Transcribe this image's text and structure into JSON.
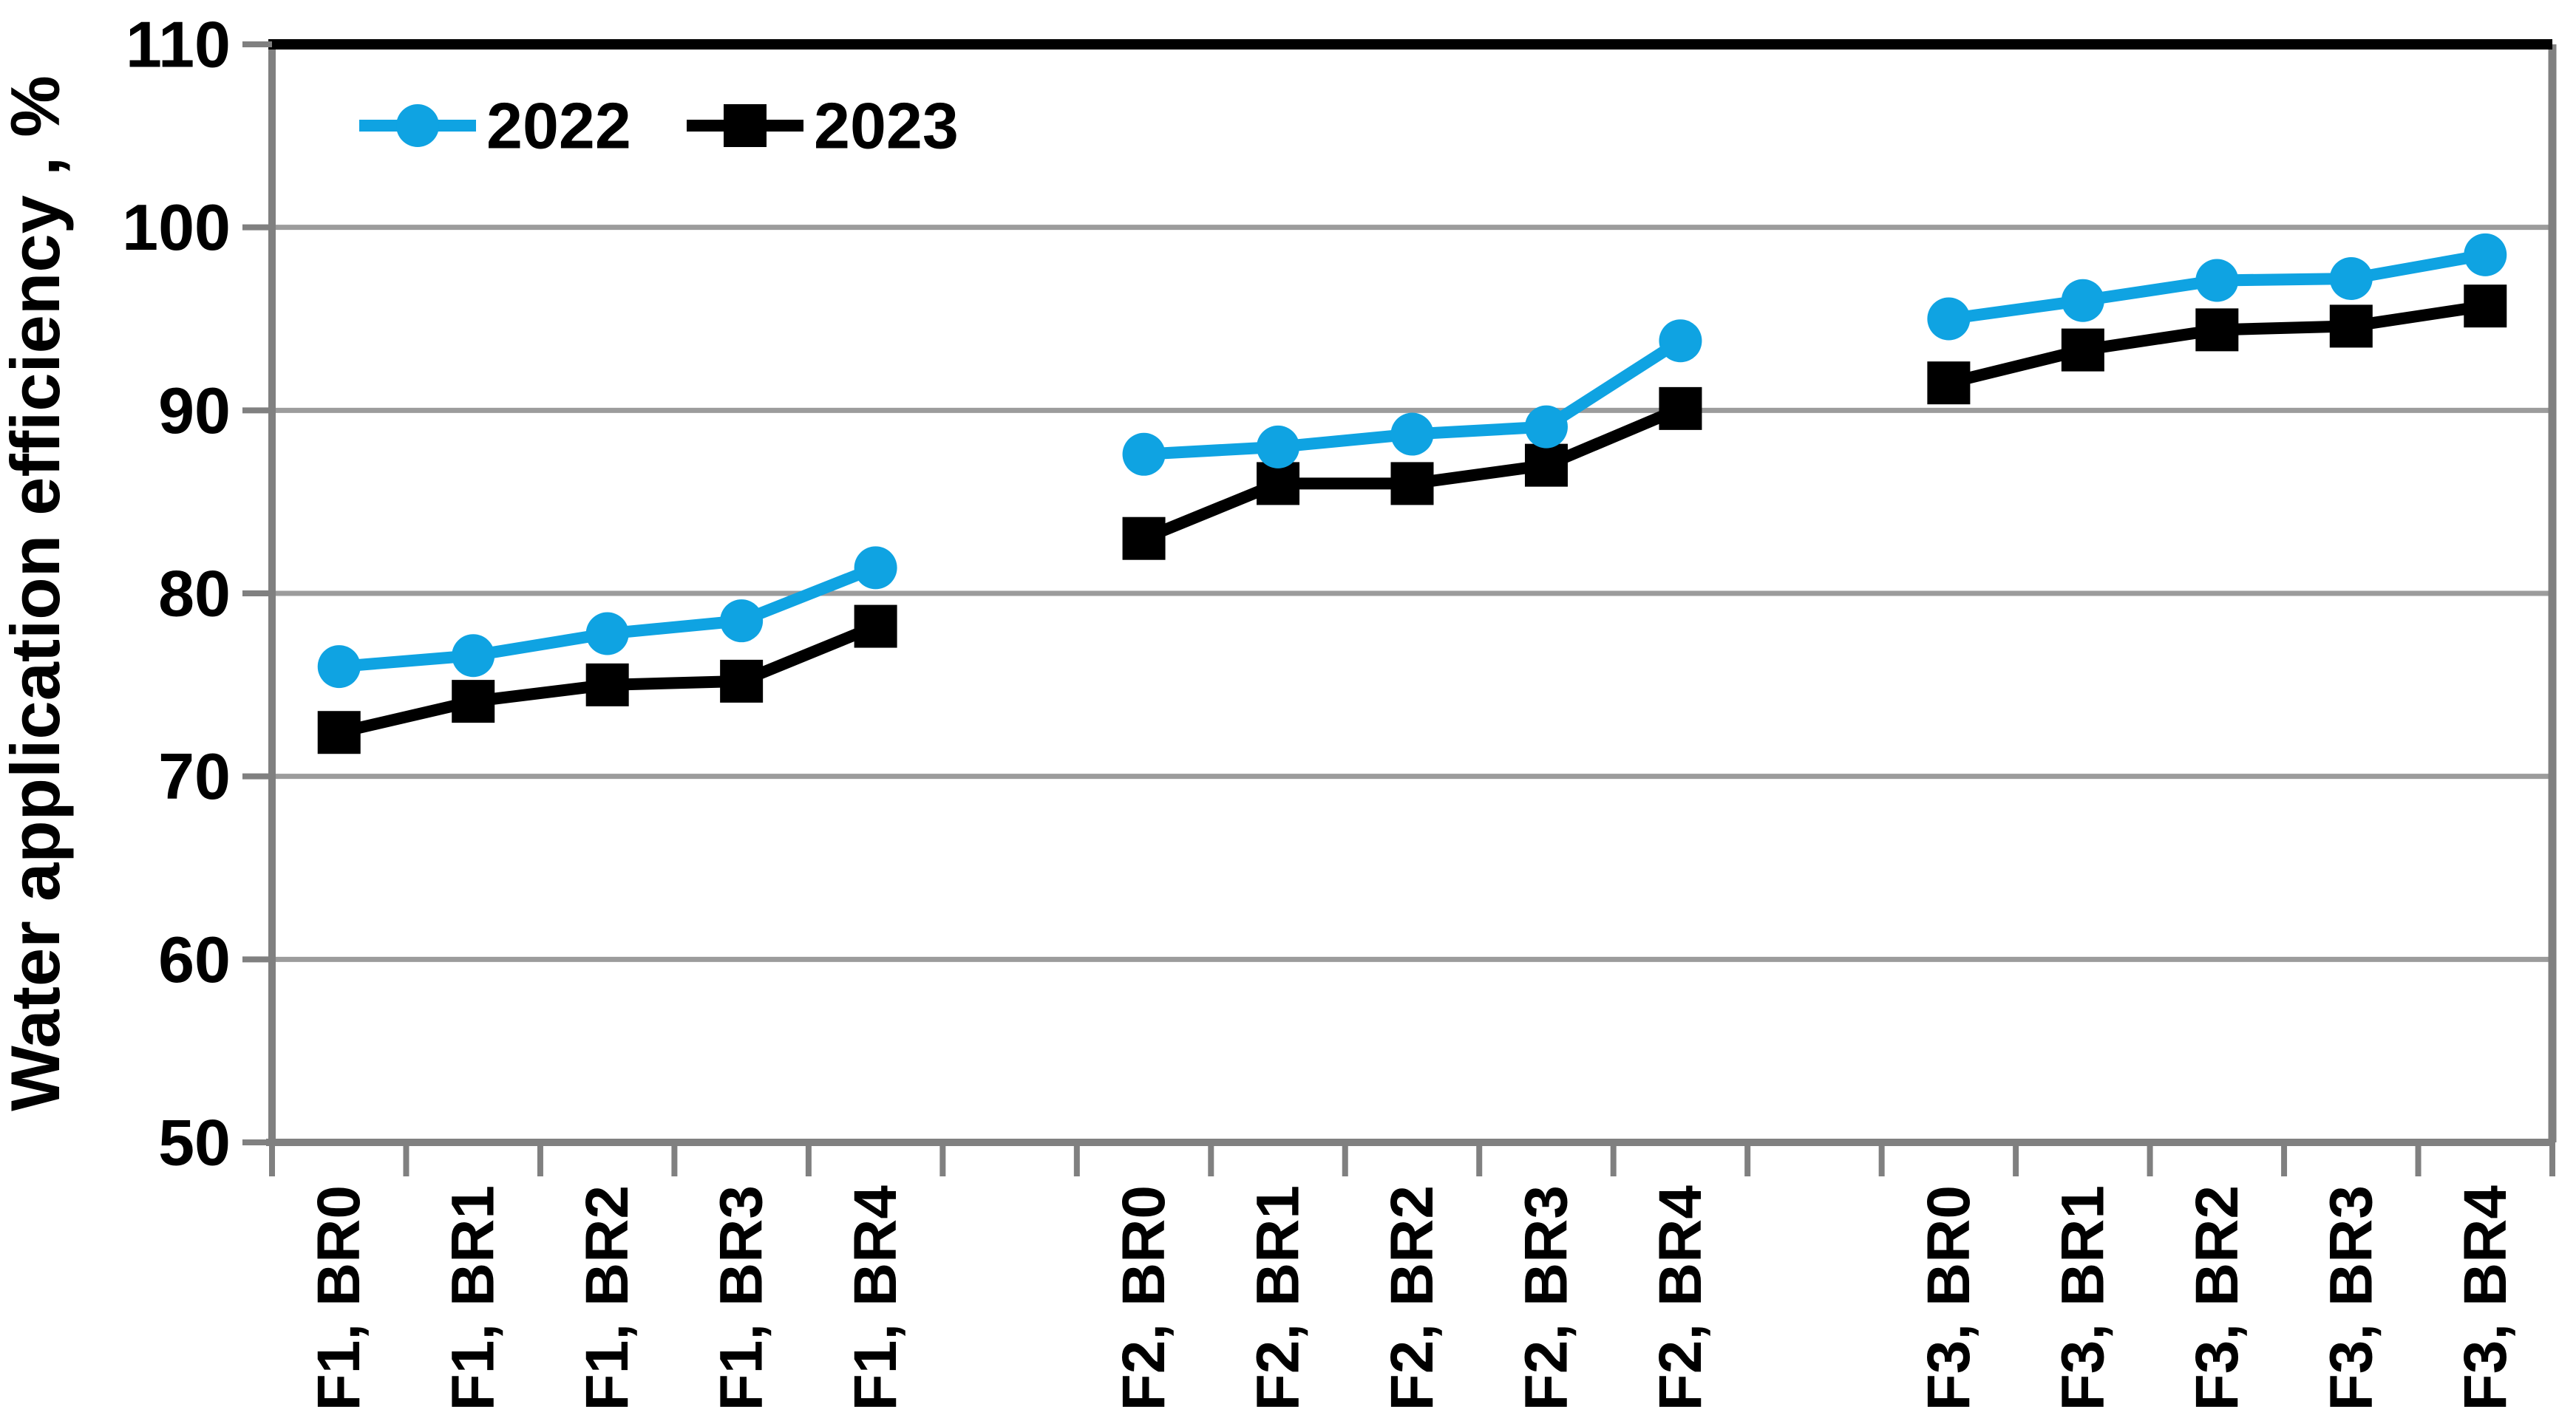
{
  "figure": {
    "y_axis_title": "Water application efficiency , %",
    "colors": {
      "series_2022": "#0FA3E2",
      "series_2023": "#000000",
      "gridline": "#9C9C9C",
      "axis": "#808080",
      "top_border": "#000000"
    }
  },
  "chart_data": {
    "type": "line",
    "title": "",
    "xlabel": "",
    "ylabel": "Water application efficiency , %",
    "ylim": [
      50,
      110
    ],
    "yticks": [
      50,
      60,
      70,
      80,
      90,
      100,
      110
    ],
    "grid": true,
    "legend_position": "top-left-inside",
    "categories": [
      "F1, BR0",
      "F1, BR1",
      "F1, BR2",
      "F1, BR3",
      "F1, BR4",
      "F2, BR0",
      "F2, BR1",
      "F2, BR2",
      "F2, BR3",
      "F2, BR4",
      "F3, BR0",
      "F3, BR1",
      "F3, BR2",
      "F3, BR3",
      "F3, BR4"
    ],
    "group_size": 5,
    "gap_bands_between_groups": 1,
    "series": [
      {
        "name": "2022",
        "color": "#0FA3E2",
        "marker": "circle",
        "values": [
          76.0,
          76.6,
          77.8,
          78.5,
          81.4,
          87.6,
          88.0,
          88.7,
          89.1,
          93.8,
          95.0,
          96.0,
          97.1,
          97.2,
          98.5
        ]
      },
      {
        "name": "2023",
        "color": "#000000",
        "marker": "square",
        "values": [
          72.4,
          74.1,
          75.0,
          75.2,
          78.2,
          83.0,
          86.0,
          86.0,
          87.0,
          90.1,
          91.5,
          93.3,
          94.4,
          94.6,
          95.7
        ]
      }
    ]
  }
}
